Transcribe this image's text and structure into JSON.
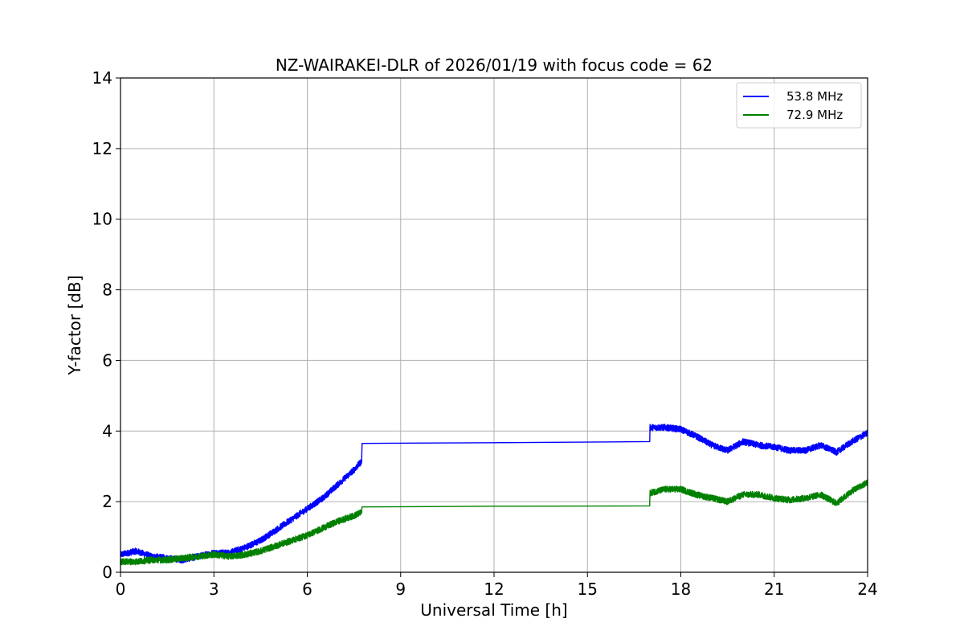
{
  "chart_data": {
    "type": "line",
    "title": "NZ-WAIRAKEI-DLR of 2026/01/19 with focus code = 62",
    "xlabel": "Universal Time [h]",
    "ylabel": "Y-factor [dB]",
    "xlim": [
      0,
      24
    ],
    "ylim": [
      0,
      14
    ],
    "xticks": [
      0,
      3,
      6,
      9,
      12,
      15,
      18,
      21,
      24
    ],
    "yticks": [
      0,
      2,
      4,
      6,
      8,
      10,
      12,
      14
    ],
    "grid": true,
    "legend_position": "top-right",
    "series": [
      {
        "name": "53.8 MHz",
        "color": "#0000ff",
        "x": [
          0,
          0.5,
          1,
          1.5,
          2,
          2.5,
          3,
          3.5,
          4,
          4.5,
          5,
          5.5,
          6,
          6.5,
          7,
          7.5,
          7.75,
          7.76,
          12,
          17,
          17.01,
          17.5,
          18,
          18.5,
          19,
          19.5,
          20,
          20.5,
          21,
          21.5,
          22,
          22.5,
          23,
          23.5,
          24
        ],
        "y": [
          0.5,
          0.6,
          0.45,
          0.4,
          0.35,
          0.45,
          0.55,
          0.55,
          0.7,
          0.9,
          1.2,
          1.5,
          1.8,
          2.1,
          2.5,
          2.9,
          3.15,
          3.65,
          3.67,
          3.7,
          4.1,
          4.1,
          4.05,
          3.85,
          3.6,
          3.45,
          3.7,
          3.6,
          3.55,
          3.45,
          3.45,
          3.6,
          3.4,
          3.7,
          3.95
        ],
        "noise": 0.09
      },
      {
        "name": "72.9 MHz",
        "color": "#008000",
        "x": [
          0,
          0.5,
          1,
          1.5,
          2,
          2.5,
          3,
          3.5,
          4,
          4.5,
          5,
          5.5,
          6,
          6.5,
          7,
          7.5,
          7.75,
          7.76,
          12,
          17,
          17.01,
          17.5,
          18,
          18.5,
          19,
          19.5,
          20,
          20.5,
          21,
          21.5,
          22,
          22.5,
          23,
          23.5,
          24
        ],
        "y": [
          0.3,
          0.3,
          0.35,
          0.35,
          0.4,
          0.45,
          0.5,
          0.45,
          0.5,
          0.6,
          0.75,
          0.9,
          1.05,
          1.25,
          1.45,
          1.6,
          1.7,
          1.85,
          1.87,
          1.88,
          2.25,
          2.35,
          2.35,
          2.2,
          2.1,
          2.0,
          2.2,
          2.2,
          2.1,
          2.05,
          2.1,
          2.2,
          1.95,
          2.3,
          2.55
        ],
        "noise": 0.09
      }
    ]
  }
}
